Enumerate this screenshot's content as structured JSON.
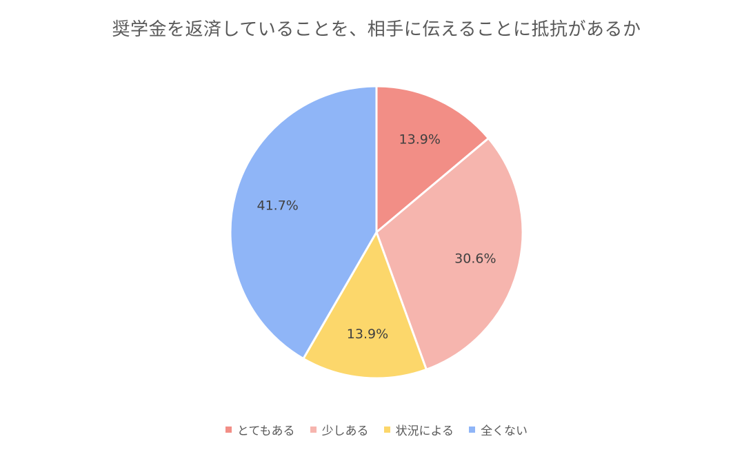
{
  "chart_data": {
    "type": "pie",
    "title": "奨学金を返済していることを、相手に伝えることに抵抗があるか",
    "categories": [
      "とてもある",
      "少しある",
      "状況による",
      "全くない"
    ],
    "values": [
      13.9,
      30.6,
      13.9,
      41.7
    ],
    "labels": [
      "13.9%",
      "30.6%",
      "13.9%",
      "41.7%"
    ],
    "colors": [
      "#F28E86",
      "#F6B5AE",
      "#FCD76B",
      "#8FB5F7"
    ],
    "start_angle": "top",
    "direction": "clockwise",
    "legend_position": "bottom"
  }
}
